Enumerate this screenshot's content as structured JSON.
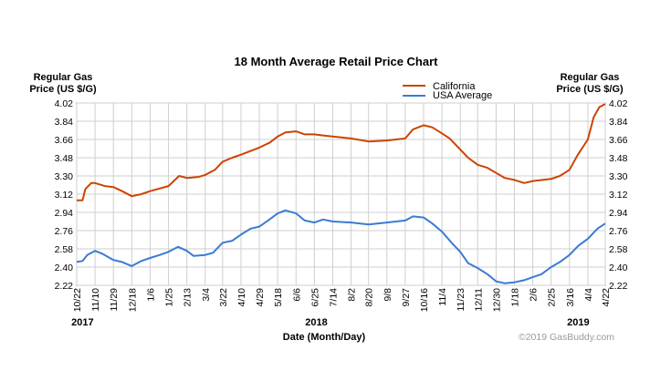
{
  "chart_data": {
    "type": "line",
    "title": "18 Month Average Retail Price Chart",
    "ylabel_left": [
      "Regular Gas",
      "Price (US $/G)"
    ],
    "ylabel_right": [
      "Regular Gas",
      "Price (US $/G)"
    ],
    "xlabel": "Date (Month/Day)",
    "credit": "©2019 GasBuddy.com",
    "ylim": [
      2.22,
      4.02
    ],
    "yticks": [
      "4.02",
      "3.84",
      "3.66",
      "3.48",
      "3.30",
      "3.12",
      "2.94",
      "2.76",
      "2.58",
      "2.40",
      "2.22"
    ],
    "xlim": [
      "2017-10-22",
      "2019-04-22"
    ],
    "xticks": [
      {
        "date": "2017-10-22",
        "label": "10/22"
      },
      {
        "date": "2017-11-10",
        "label": "11/10"
      },
      {
        "date": "2017-11-29",
        "label": "11/29"
      },
      {
        "date": "2017-12-18",
        "label": "12/18"
      },
      {
        "date": "2018-01-06",
        "label": "1/6"
      },
      {
        "date": "2018-01-25",
        "label": "1/25"
      },
      {
        "date": "2018-02-13",
        "label": "2/13"
      },
      {
        "date": "2018-03-04",
        "label": "3/4"
      },
      {
        "date": "2018-03-22",
        "label": "3/22"
      },
      {
        "date": "2018-04-10",
        "label": "4/10"
      },
      {
        "date": "2018-04-29",
        "label": "4/29"
      },
      {
        "date": "2018-05-18",
        "label": "5/18"
      },
      {
        "date": "2018-06-06",
        "label": "6/6"
      },
      {
        "date": "2018-06-25",
        "label": "6/25"
      },
      {
        "date": "2018-07-14",
        "label": "7/14"
      },
      {
        "date": "2018-08-02",
        "label": "8/2"
      },
      {
        "date": "2018-08-20",
        "label": "8/20"
      },
      {
        "date": "2018-09-08",
        "label": "9/8"
      },
      {
        "date": "2018-09-27",
        "label": "9/27"
      },
      {
        "date": "2018-10-16",
        "label": "10/16"
      },
      {
        "date": "2018-11-04",
        "label": "11/4"
      },
      {
        "date": "2018-11-23",
        "label": "11/23"
      },
      {
        "date": "2018-12-11",
        "label": "12/11"
      },
      {
        "date": "2018-12-30",
        "label": "12/30"
      },
      {
        "date": "2019-01-18",
        "label": "1/18"
      },
      {
        "date": "2019-02-06",
        "label": "2/6"
      },
      {
        "date": "2019-02-25",
        "label": "2/25"
      },
      {
        "date": "2019-03-16",
        "label": "3/16"
      },
      {
        "date": "2019-04-04",
        "label": "4/4"
      },
      {
        "date": "2019-04-22",
        "label": "4/22"
      }
    ],
    "years": [
      {
        "date": "2017-10-28",
        "label": "2017"
      },
      {
        "date": "2018-06-27",
        "label": "2018"
      },
      {
        "date": "2019-03-25",
        "label": "2019"
      }
    ],
    "grid": true,
    "legend_position": "top-center",
    "series": [
      {
        "name": "California",
        "color": "#cc4400",
        "points": [
          [
            "2017-10-22",
            3.06
          ],
          [
            "2017-10-28",
            3.06
          ],
          [
            "2017-10-31",
            3.17
          ],
          [
            "2017-11-06",
            3.23
          ],
          [
            "2017-11-10",
            3.23
          ],
          [
            "2017-11-20",
            3.2
          ],
          [
            "2017-11-29",
            3.19
          ],
          [
            "2017-12-08",
            3.15
          ],
          [
            "2017-12-18",
            3.1
          ],
          [
            "2017-12-28",
            3.12
          ],
          [
            "2018-01-06",
            3.15
          ],
          [
            "2018-01-25",
            3.2
          ],
          [
            "2018-02-05",
            3.3
          ],
          [
            "2018-02-13",
            3.28
          ],
          [
            "2018-02-25",
            3.29
          ],
          [
            "2018-03-04",
            3.31
          ],
          [
            "2018-03-14",
            3.36
          ],
          [
            "2018-03-22",
            3.44
          ],
          [
            "2018-04-01",
            3.48
          ],
          [
            "2018-04-10",
            3.51
          ],
          [
            "2018-04-29",
            3.58
          ],
          [
            "2018-05-10",
            3.63
          ],
          [
            "2018-05-18",
            3.69
          ],
          [
            "2018-05-26",
            3.73
          ],
          [
            "2018-06-06",
            3.74
          ],
          [
            "2018-06-15",
            3.71
          ],
          [
            "2018-06-25",
            3.71
          ],
          [
            "2018-07-04",
            3.7
          ],
          [
            "2018-07-14",
            3.69
          ],
          [
            "2018-08-02",
            3.67
          ],
          [
            "2018-08-20",
            3.64
          ],
          [
            "2018-09-08",
            3.65
          ],
          [
            "2018-09-27",
            3.67
          ],
          [
            "2018-10-05",
            3.76
          ],
          [
            "2018-10-16",
            3.8
          ],
          [
            "2018-10-25",
            3.78
          ],
          [
            "2018-11-04",
            3.72
          ],
          [
            "2018-11-12",
            3.67
          ],
          [
            "2018-11-23",
            3.56
          ],
          [
            "2018-12-01",
            3.48
          ],
          [
            "2018-12-11",
            3.41
          ],
          [
            "2018-12-21",
            3.38
          ],
          [
            "2018-12-30",
            3.33
          ],
          [
            "2019-01-08",
            3.28
          ],
          [
            "2019-01-18",
            3.26
          ],
          [
            "2019-01-28",
            3.23
          ],
          [
            "2019-02-06",
            3.25
          ],
          [
            "2019-02-25",
            3.27
          ],
          [
            "2019-03-06",
            3.3
          ],
          [
            "2019-03-16",
            3.36
          ],
          [
            "2019-03-24",
            3.5
          ],
          [
            "2019-04-04",
            3.66
          ],
          [
            "2019-04-10",
            3.88
          ],
          [
            "2019-04-16",
            3.98
          ],
          [
            "2019-04-22",
            4.01
          ]
        ]
      },
      {
        "name": "USA Average",
        "color": "#3a7bd5",
        "points": [
          [
            "2017-10-22",
            2.45
          ],
          [
            "2017-10-28",
            2.46
          ],
          [
            "2017-11-02",
            2.52
          ],
          [
            "2017-11-10",
            2.56
          ],
          [
            "2017-11-18",
            2.53
          ],
          [
            "2017-11-29",
            2.47
          ],
          [
            "2017-12-08",
            2.45
          ],
          [
            "2017-12-18",
            2.41
          ],
          [
            "2017-12-28",
            2.46
          ],
          [
            "2018-01-06",
            2.49
          ],
          [
            "2018-01-16",
            2.52
          ],
          [
            "2018-01-25",
            2.55
          ],
          [
            "2018-02-04",
            2.6
          ],
          [
            "2018-02-13",
            2.56
          ],
          [
            "2018-02-20",
            2.51
          ],
          [
            "2018-03-04",
            2.52
          ],
          [
            "2018-03-12",
            2.54
          ],
          [
            "2018-03-22",
            2.64
          ],
          [
            "2018-04-01",
            2.66
          ],
          [
            "2018-04-10",
            2.72
          ],
          [
            "2018-04-20",
            2.78
          ],
          [
            "2018-04-29",
            2.8
          ],
          [
            "2018-05-08",
            2.86
          ],
          [
            "2018-05-18",
            2.93
          ],
          [
            "2018-05-26",
            2.96
          ],
          [
            "2018-06-06",
            2.93
          ],
          [
            "2018-06-15",
            2.86
          ],
          [
            "2018-06-25",
            2.84
          ],
          [
            "2018-07-04",
            2.87
          ],
          [
            "2018-07-14",
            2.85
          ],
          [
            "2018-08-02",
            2.84
          ],
          [
            "2018-08-20",
            2.82
          ],
          [
            "2018-09-08",
            2.84
          ],
          [
            "2018-09-27",
            2.86
          ],
          [
            "2018-10-05",
            2.9
          ],
          [
            "2018-10-16",
            2.89
          ],
          [
            "2018-10-25",
            2.83
          ],
          [
            "2018-11-04",
            2.75
          ],
          [
            "2018-11-14",
            2.64
          ],
          [
            "2018-11-23",
            2.55
          ],
          [
            "2018-12-01",
            2.44
          ],
          [
            "2018-12-11",
            2.39
          ],
          [
            "2018-12-21",
            2.33
          ],
          [
            "2018-12-30",
            2.26
          ],
          [
            "2019-01-08",
            2.24
          ],
          [
            "2019-01-18",
            2.25
          ],
          [
            "2019-01-28",
            2.27
          ],
          [
            "2019-02-06",
            2.3
          ],
          [
            "2019-02-15",
            2.33
          ],
          [
            "2019-02-25",
            2.4
          ],
          [
            "2019-03-06",
            2.45
          ],
          [
            "2019-03-16",
            2.52
          ],
          [
            "2019-03-25",
            2.61
          ],
          [
            "2019-04-04",
            2.68
          ],
          [
            "2019-04-14",
            2.78
          ],
          [
            "2019-04-22",
            2.83
          ]
        ]
      }
    ]
  }
}
